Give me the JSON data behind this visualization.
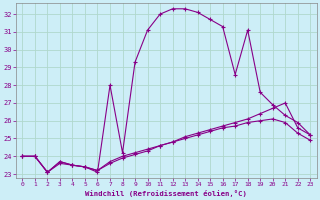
{
  "xlabel": "Windchill (Refroidissement éolien,°C)",
  "background_color": "#cdeef7",
  "grid_color": "#b0d8cc",
  "line_color": "#880088",
  "xlim": [
    -0.5,
    23.5
  ],
  "ylim": [
    22.8,
    32.6
  ],
  "yticks": [
    23,
    24,
    25,
    26,
    27,
    28,
    29,
    30,
    31,
    32
  ],
  "xticks": [
    0,
    1,
    2,
    3,
    4,
    5,
    6,
    7,
    8,
    9,
    10,
    11,
    12,
    13,
    14,
    15,
    16,
    17,
    18,
    19,
    20,
    21,
    22,
    23
  ],
  "series": [
    {
      "x": [
        0,
        1,
        2,
        3,
        4,
        5,
        6,
        7,
        8,
        9,
        10,
        11,
        12,
        13,
        14,
        15,
        16,
        17,
        18,
        19,
        20,
        21,
        22,
        23
      ],
      "y": [
        24.0,
        24.0,
        23.1,
        23.7,
        23.5,
        23.4,
        23.1,
        28.0,
        24.2,
        29.3,
        31.1,
        32.0,
        32.3,
        32.3,
        32.1,
        31.7,
        31.3,
        28.6,
        31.1,
        27.6,
        26.9,
        26.3,
        25.9,
        25.2
      ]
    },
    {
      "x": [
        0,
        1,
        2,
        3,
        4,
        5,
        6,
        7,
        8,
        9,
        10,
        11,
        12,
        13,
        14,
        15,
        16,
        17,
        18,
        19,
        20,
        21,
        22,
        23
      ],
      "y": [
        24.0,
        24.0,
        23.1,
        23.7,
        23.5,
        23.4,
        23.2,
        23.6,
        23.9,
        24.1,
        24.3,
        24.6,
        24.8,
        25.1,
        25.3,
        25.5,
        25.7,
        25.9,
        26.1,
        26.4,
        26.7,
        27.0,
        25.6,
        25.2
      ]
    },
    {
      "x": [
        0,
        1,
        2,
        3,
        4,
        5,
        6,
        7,
        8,
        9,
        10,
        11,
        12,
        13,
        14,
        15,
        16,
        17,
        18,
        19,
        20,
        21,
        22,
        23
      ],
      "y": [
        24.0,
        24.0,
        23.1,
        23.6,
        23.5,
        23.4,
        23.2,
        23.7,
        24.0,
        24.2,
        24.4,
        24.6,
        24.8,
        25.0,
        25.2,
        25.4,
        25.6,
        25.7,
        25.9,
        26.0,
        26.1,
        25.9,
        25.3,
        24.9
      ]
    }
  ]
}
